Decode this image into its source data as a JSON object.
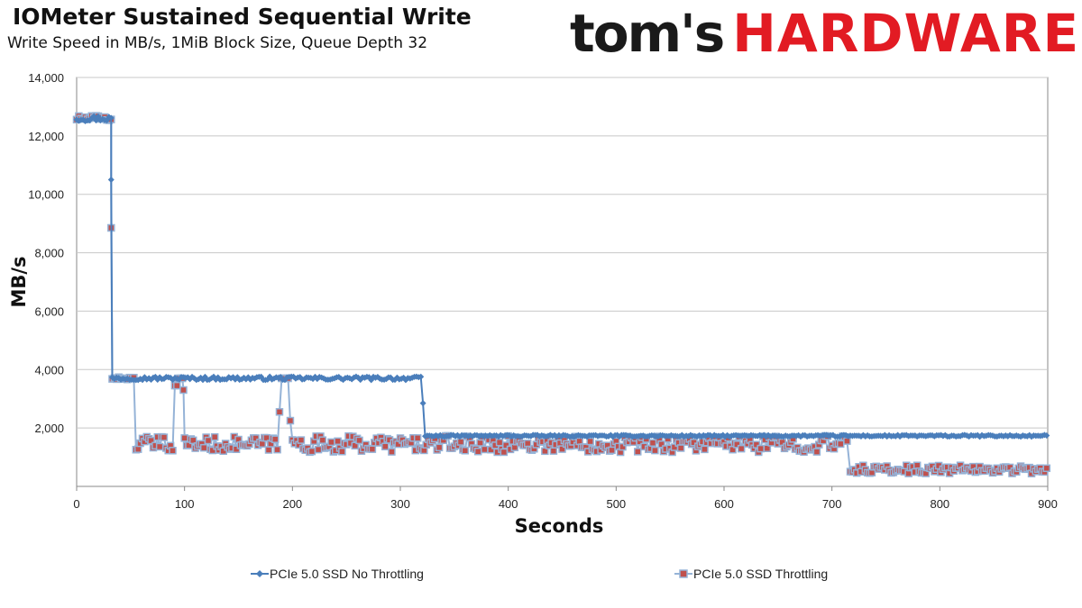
{
  "brand": {
    "text_dark": "tom's",
    "text_red": "HARDWARE"
  },
  "chart_data": {
    "type": "line",
    "title": "IOMeter Sustained Sequential Write",
    "subtitle": "Write Speed in MB/s, 1MiB Block Size, Queue Depth 32",
    "xlabel": "Seconds",
    "ylabel": "MB/s",
    "xlim": [
      0,
      900
    ],
    "ylim": [
      0,
      14000
    ],
    "xticks": [
      0,
      100,
      200,
      300,
      400,
      500,
      600,
      700,
      800,
      900
    ],
    "yticks": [
      0,
      2000,
      4000,
      6000,
      8000,
      10000,
      12000,
      14000
    ],
    "xtick_labels": [
      "0",
      "100",
      "200",
      "300",
      "400",
      "500",
      "600",
      "700",
      "800",
      "900"
    ],
    "ytick_labels": [
      "",
      "2,000",
      "4,000",
      "6,000",
      "8,000",
      "10,000",
      "12,000",
      "14,000"
    ],
    "grid": true,
    "legend_position": "bottom",
    "series": [
      {
        "name": "PCIe 5.0 SSD No Throttling",
        "color": "#4a7ebb",
        "marker": "diamond",
        "segments": [
          {
            "x_start": 0,
            "x_end": 32,
            "level": 12600,
            "jitter": 100
          },
          {
            "x_start": 32,
            "x_end": 32,
            "level": 10500,
            "jitter": 0
          },
          {
            "x_start": 33,
            "x_end": 320,
            "level": 3700,
            "jitter": 60
          },
          {
            "x_start": 321,
            "x_end": 321,
            "level": 2850,
            "jitter": 0
          },
          {
            "x_start": 323,
            "x_end": 900,
            "level": 1730,
            "jitter": 30
          }
        ]
      },
      {
        "name": "PCIe 5.0 SSD Throttling",
        "color": "#95b3d7",
        "marker_color": "#c0504d",
        "marker": "square",
        "segments": [
          {
            "x_start": 0,
            "x_end": 32,
            "level": 12600,
            "jitter": 100
          },
          {
            "x_start": 32,
            "x_end": 32,
            "level": 8850,
            "jitter": 0
          },
          {
            "x_start": 33,
            "x_end": 54,
            "level": 3700,
            "jitter": 40
          },
          {
            "x_start": 55,
            "x_end": 90,
            "level": 1450,
            "jitter": 250
          },
          {
            "x_start": 91,
            "x_end": 93,
            "level": 3450,
            "jitter": 0
          },
          {
            "x_start": 94,
            "x_end": 98,
            "level": 3700,
            "jitter": 0
          },
          {
            "x_start": 99,
            "x_end": 99,
            "level": 3300,
            "jitter": 0
          },
          {
            "x_start": 100,
            "x_end": 187,
            "level": 1450,
            "jitter": 250
          },
          {
            "x_start": 188,
            "x_end": 188,
            "level": 2550,
            "jitter": 0
          },
          {
            "x_start": 190,
            "x_end": 196,
            "level": 3700,
            "jitter": 0
          },
          {
            "x_start": 198,
            "x_end": 198,
            "level": 2250,
            "jitter": 0
          },
          {
            "x_start": 200,
            "x_end": 715,
            "level": 1450,
            "jitter": 280
          },
          {
            "x_start": 717,
            "x_end": 900,
            "level": 580,
            "jitter": 140
          }
        ]
      }
    ]
  }
}
